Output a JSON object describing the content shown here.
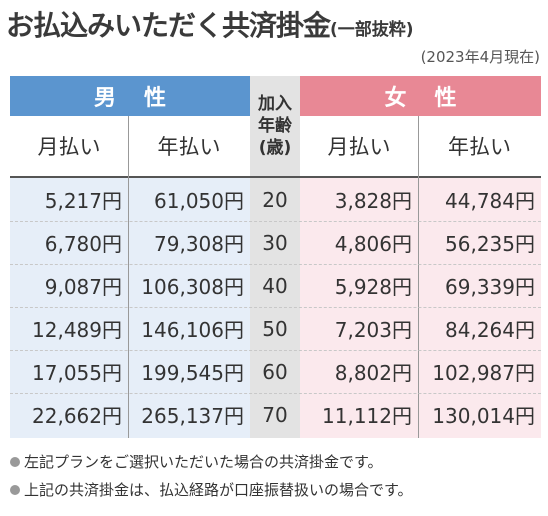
{
  "title": {
    "main": "お払込みいただく共済掛金",
    "sub": "(一部抜粋)"
  },
  "date": "(2023年4月現在)",
  "colors": {
    "male": "#5b95cf",
    "male_bg": "#e6eef8",
    "female": "#e88895",
    "female_bg": "#fbe9ed",
    "age_bg": "#e3e3e3"
  },
  "headers": {
    "male": "男性",
    "female": "女性",
    "age": [
      "加入",
      "年齢",
      "(歳)"
    ],
    "monthly": "月払い",
    "annual": "年払い"
  },
  "rows": [
    {
      "m_month": "5,217円",
      "m_year": "61,050円",
      "age": "20",
      "f_month": "3,828円",
      "f_year": "44,784円"
    },
    {
      "m_month": "6,780円",
      "m_year": "79,308円",
      "age": "30",
      "f_month": "4,806円",
      "f_year": "56,235円"
    },
    {
      "m_month": "9,087円",
      "m_year": "106,308円",
      "age": "40",
      "f_month": "5,928円",
      "f_year": "69,339円"
    },
    {
      "m_month": "12,489円",
      "m_year": "146,106円",
      "age": "50",
      "f_month": "7,203円",
      "f_year": "84,264円"
    },
    {
      "m_month": "17,055円",
      "m_year": "199,545円",
      "age": "60",
      "f_month": "8,802円",
      "f_year": "102,987円"
    },
    {
      "m_month": "22,662円",
      "m_year": "265,137円",
      "age": "70",
      "f_month": "11,112円",
      "f_year": "130,014円"
    }
  ],
  "notes": [
    "左記プランをご選択いただいた場合の共済掛金です。",
    "上記の共済掛金は、払込経路が口座振替扱いの場合です。"
  ]
}
